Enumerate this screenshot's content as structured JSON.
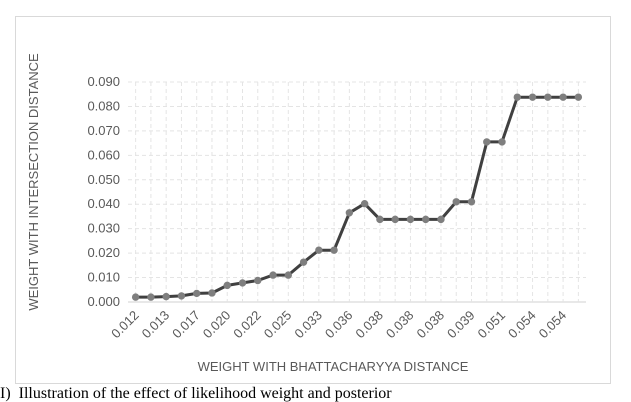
{
  "chart_data": {
    "type": "line",
    "title": "",
    "xlabel": "WEIGHT WITH BHATTACHARYYA DISTANCE",
    "ylabel": "WEIGHT WITH INTERSECTION DISTANCE",
    "ylim": [
      0,
      0.09
    ],
    "y_ticks": [
      "0.000",
      "0.010",
      "0.020",
      "0.030",
      "0.040",
      "0.050",
      "0.060",
      "0.070",
      "0.080",
      "0.090"
    ],
    "x_tick_labels": [
      "0.012",
      "0.013",
      "0.017",
      "0.020",
      "0.022",
      "0.025",
      "0.033",
      "0.036",
      "0.038",
      "0.038",
      "0.038",
      "0.039",
      "0.051",
      "0.054",
      "0.054"
    ],
    "x_tick_every": 2,
    "grid": true,
    "series": [
      {
        "values": [
          0.002,
          0.002,
          0.0022,
          0.0025,
          0.0035,
          0.0037,
          0.0068,
          0.0078,
          0.0088,
          0.011,
          0.011,
          0.0163,
          0.0212,
          0.0212,
          0.0365,
          0.0402,
          0.0338,
          0.0338,
          0.0338,
          0.0338,
          0.0338,
          0.041,
          0.041,
          0.0655,
          0.0655,
          0.0838,
          0.0838,
          0.0838,
          0.0838,
          0.0838
        ]
      }
    ],
    "line_color": "#404040",
    "marker_color": "#7f7f7f",
    "grid_color": "#e4e4e4"
  },
  "caption": "Illustration of the effect of likelihood weight and posterior"
}
